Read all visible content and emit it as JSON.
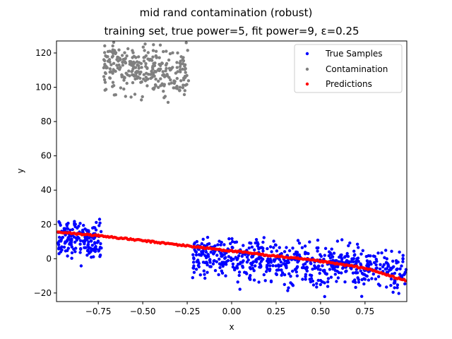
{
  "chart_data": {
    "type": "scatter",
    "title": "mid rand contamination (robust)",
    "subtitle": "training set, true power=5, fit power=9, ε=0.25",
    "xlabel": "x",
    "ylabel": "y",
    "xlim": [
      -0.985,
      0.985
    ],
    "ylim": [
      -25,
      127
    ],
    "xticks": [
      -0.75,
      -0.5,
      -0.25,
      0.0,
      0.25,
      0.5,
      0.75
    ],
    "xtick_labels": [
      "−0.75",
      "−0.50",
      "−0.25",
      "0.00",
      "0.25",
      "0.50",
      "0.75"
    ],
    "yticks": [
      -20,
      0,
      20,
      40,
      60,
      80,
      100,
      120
    ],
    "ytick_labels": [
      "−20",
      "0",
      "20",
      "40",
      "60",
      "80",
      "100",
      "120"
    ],
    "grid": false,
    "legend_position": "top-right",
    "series": [
      {
        "name": "True Samples",
        "color": "#0000ff",
        "regions": [
          {
            "x_range": [
              -0.985,
              -0.73
            ],
            "y_center_start": 12,
            "y_center_end": 9,
            "spread": 5.5,
            "count": 170
          },
          {
            "x_range": [
              -0.22,
              0.985
            ],
            "y_center_start": 2,
            "y_center_end": -8,
            "spread": 6,
            "count": 650
          }
        ]
      },
      {
        "name": "Contamination",
        "color": "#808080",
        "regions": [
          {
            "x_range": [
              -0.72,
              -0.24
            ],
            "y_center_start": 113,
            "y_center_end": 108,
            "spread": 7,
            "count": 300
          }
        ]
      },
      {
        "name": "Predictions",
        "color": "#ff0000",
        "curve": [
          {
            "x": -0.985,
            "y": 15.5
          },
          {
            "x": -0.75,
            "y": 13.5
          },
          {
            "x": -0.5,
            "y": 10.5
          },
          {
            "x": -0.25,
            "y": 7.5
          },
          {
            "x": 0.0,
            "y": 4.5
          },
          {
            "x": 0.25,
            "y": 1.5
          },
          {
            "x": 0.5,
            "y": -1.5
          },
          {
            "x": 0.75,
            "y": -5.5
          },
          {
            "x": 0.985,
            "y": -13
          }
        ]
      }
    ]
  }
}
